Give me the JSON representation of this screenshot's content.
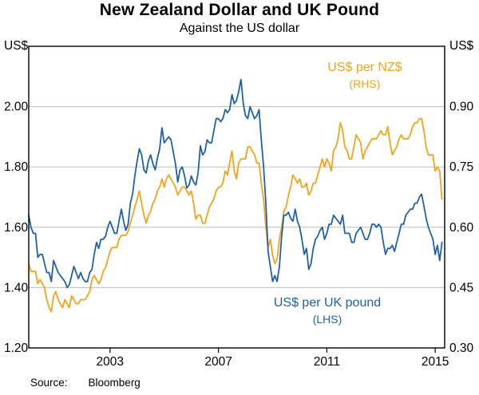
{
  "title": "New Zealand Dollar and UK Pound",
  "subtitle": "Against the US dollar",
  "source": {
    "label": "Source:",
    "value": "Bloomberg"
  },
  "chart_data": {
    "type": "line",
    "title": "New Zealand Dollar and UK Pound",
    "subtitle": "Against the US dollar",
    "grid": true,
    "grid_color": "#bdbdbd",
    "frame_color": "#000000",
    "x_range": [
      2000.0,
      2015.35
    ],
    "x_ticks": [
      2003,
      2007,
      2011,
      2015
    ],
    "x_start": 2000.0,
    "x_step": 0.0833333,
    "left_axis": {
      "label": "US$",
      "ticks": [
        1.2,
        1.4,
        1.6,
        1.8,
        2.0
      ],
      "range": [
        1.2,
        2.2
      ]
    },
    "right_axis": {
      "label": "US$",
      "ticks": [
        0.3,
        0.45,
        0.6,
        0.75,
        0.9
      ],
      "range": [
        0.3,
        1.05
      ]
    },
    "series": [
      {
        "id": "nzd",
        "name": "US$ per NZ$",
        "side_note": "(RHS)",
        "axis": "right",
        "color": "#f5a21c",
        "values": [
          0.51,
          0.49,
          0.49,
          0.49,
          0.46,
          0.47,
          0.46,
          0.45,
          0.42,
          0.4,
          0.39,
          0.43,
          0.44,
          0.42,
          0.41,
          0.4,
          0.42,
          0.41,
          0.4,
          0.43,
          0.42,
          0.41,
          0.41,
          0.42,
          0.42,
          0.42,
          0.43,
          0.44,
          0.47,
          0.48,
          0.47,
          0.46,
          0.47,
          0.49,
          0.5,
          0.52,
          0.54,
          0.55,
          0.55,
          0.55,
          0.57,
          0.58,
          0.58,
          0.58,
          0.59,
          0.61,
          0.63,
          0.65,
          0.67,
          0.69,
          0.66,
          0.63,
          0.61,
          0.63,
          0.64,
          0.66,
          0.67,
          0.69,
          0.7,
          0.72,
          0.7,
          0.72,
          0.73,
          0.72,
          0.71,
          0.7,
          0.68,
          0.69,
          0.7,
          0.7,
          0.69,
          0.68,
          0.69,
          0.66,
          0.62,
          0.63,
          0.63,
          0.61,
          0.61,
          0.63,
          0.65,
          0.66,
          0.67,
          0.69,
          0.7,
          0.7,
          0.71,
          0.74,
          0.73,
          0.76,
          0.79,
          0.74,
          0.72,
          0.76,
          0.77,
          0.77,
          0.77,
          0.8,
          0.8,
          0.79,
          0.78,
          0.76,
          0.76,
          0.71,
          0.67,
          0.6,
          0.55,
          0.57,
          0.53,
          0.51,
          0.52,
          0.57,
          0.6,
          0.64,
          0.65,
          0.68,
          0.7,
          0.73,
          0.72,
          0.71,
          0.72,
          0.7,
          0.7,
          0.71,
          0.68,
          0.69,
          0.71,
          0.71,
          0.73,
          0.75,
          0.77,
          0.75,
          0.77,
          0.76,
          0.74,
          0.79,
          0.8,
          0.82,
          0.86,
          0.84,
          0.8,
          0.79,
          0.77,
          0.77,
          0.8,
          0.83,
          0.82,
          0.81,
          0.77,
          0.79,
          0.8,
          0.81,
          0.82,
          0.82,
          0.82,
          0.83,
          0.84,
          0.83,
          0.83,
          0.85,
          0.81,
          0.78,
          0.79,
          0.8,
          0.82,
          0.83,
          0.82,
          0.82,
          0.82,
          0.83,
          0.85,
          0.86,
          0.86,
          0.87,
          0.87,
          0.84,
          0.8,
          0.78,
          0.78,
          0.78,
          0.74,
          0.75,
          0.74,
          0.67
        ]
      },
      {
        "id": "gbp",
        "name": "US$ per UK pound",
        "side_note": "(LHS)",
        "axis": "left",
        "color": "#1f62ab",
        "values": [
          1.64,
          1.6,
          1.58,
          1.58,
          1.5,
          1.51,
          1.51,
          1.48,
          1.45,
          1.45,
          1.42,
          1.49,
          1.47,
          1.45,
          1.44,
          1.43,
          1.42,
          1.4,
          1.41,
          1.44,
          1.47,
          1.45,
          1.43,
          1.45,
          1.43,
          1.42,
          1.42,
          1.45,
          1.46,
          1.51,
          1.55,
          1.53,
          1.56,
          1.56,
          1.57,
          1.6,
          1.62,
          1.6,
          1.58,
          1.58,
          1.62,
          1.66,
          1.62,
          1.59,
          1.61,
          1.68,
          1.71,
          1.77,
          1.82,
          1.86,
          1.84,
          1.79,
          1.78,
          1.82,
          1.84,
          1.81,
          1.79,
          1.83,
          1.86,
          1.93,
          1.88,
          1.89,
          1.9,
          1.89,
          1.85,
          1.81,
          1.75,
          1.79,
          1.8,
          1.77,
          1.73,
          1.74,
          1.77,
          1.75,
          1.74,
          1.78,
          1.87,
          1.84,
          1.85,
          1.89,
          1.88,
          1.88,
          1.92,
          1.96,
          1.96,
          1.95,
          1.96,
          1.99,
          1.98,
          1.99,
          2.04,
          2.01,
          2.02,
          2.05,
          2.09,
          2.01,
          1.97,
          1.96,
          2.0,
          1.98,
          1.96,
          1.97,
          1.99,
          1.89,
          1.8,
          1.68,
          1.52,
          1.47,
          1.42,
          1.44,
          1.42,
          1.47,
          1.57,
          1.64,
          1.64,
          1.65,
          1.63,
          1.62,
          1.66,
          1.62,
          1.6,
          1.56,
          1.51,
          1.53,
          1.46,
          1.48,
          1.53,
          1.56,
          1.57,
          1.59,
          1.6,
          1.56,
          1.58,
          1.61,
          1.61,
          1.64,
          1.63,
          1.62,
          1.61,
          1.64,
          1.58,
          1.58,
          1.58,
          1.55,
          1.55,
          1.58,
          1.59,
          1.6,
          1.58,
          1.56,
          1.56,
          1.58,
          1.61,
          1.61,
          1.6,
          1.61,
          1.6,
          1.55,
          1.51,
          1.53,
          1.53,
          1.54,
          1.52,
          1.55,
          1.58,
          1.61,
          1.61,
          1.64,
          1.65,
          1.66,
          1.66,
          1.68,
          1.68,
          1.7,
          1.71,
          1.67,
          1.63,
          1.6,
          1.58,
          1.56,
          1.51,
          1.54,
          1.49,
          1.55
        ]
      }
    ]
  }
}
